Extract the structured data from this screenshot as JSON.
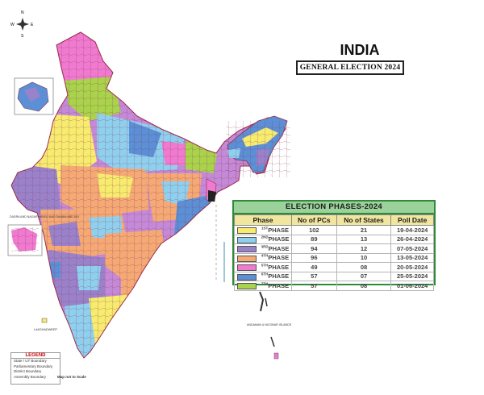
{
  "title": "INDIA",
  "subtitle": "GENERAL ELECTION 2024",
  "compass": {
    "n": "N",
    "s": "S",
    "e": "E",
    "w": "W"
  },
  "phases": {
    "heading": "ELECTION PHASES-2024",
    "columns": [
      "Phase",
      "No of PCs",
      "No of States",
      "Poll Date"
    ],
    "rows": [
      {
        "sup": "1ST",
        "label": "PHASE",
        "pcs": "102",
        "states": "21",
        "date": "19-04-2024",
        "color": "#f7ec6e"
      },
      {
        "sup": "2ND",
        "label": "PHASE",
        "pcs": "89",
        "states": "13",
        "date": "26-04-2024",
        "color": "#8fd0ef"
      },
      {
        "sup": "3RD",
        "label": "PHASE",
        "pcs": "94",
        "states": "12",
        "date": "07-05-2024",
        "color": "#9a82cb"
      },
      {
        "sup": "4TH",
        "label": "PHASE",
        "pcs": "96",
        "states": "10",
        "date": "13-05-2024",
        "color": "#f5a974"
      },
      {
        "sup": "5TH",
        "label": "PHASE",
        "pcs": "49",
        "states": "08",
        "date": "20-05-2024",
        "color": "#f07ad0"
      },
      {
        "sup": "6TH",
        "label": "PHASE",
        "pcs": "57",
        "states": "07",
        "date": "25-05-2024",
        "color": "#5b8fd6"
      },
      {
        "sup": "7TH",
        "label": "PHASE",
        "pcs": "57",
        "states": "08",
        "date": "01-06-2024",
        "color": "#a9d34b"
      }
    ]
  },
  "labels": {
    "lakshadweep": "LAKSHADWEEP",
    "andaman": "ANDAMAN & NICOBAR ISLANDS",
    "dadra": "DADRA AND NAGAR HAVELI AND DAMAN AND DIU"
  },
  "legend": {
    "heading": "LEGEND",
    "items": [
      "State / UT Boundary",
      "Parliamentary Boundary",
      "District Boundary",
      "Assembly Boundary"
    ]
  },
  "scale_note": "Map not to Scale"
}
